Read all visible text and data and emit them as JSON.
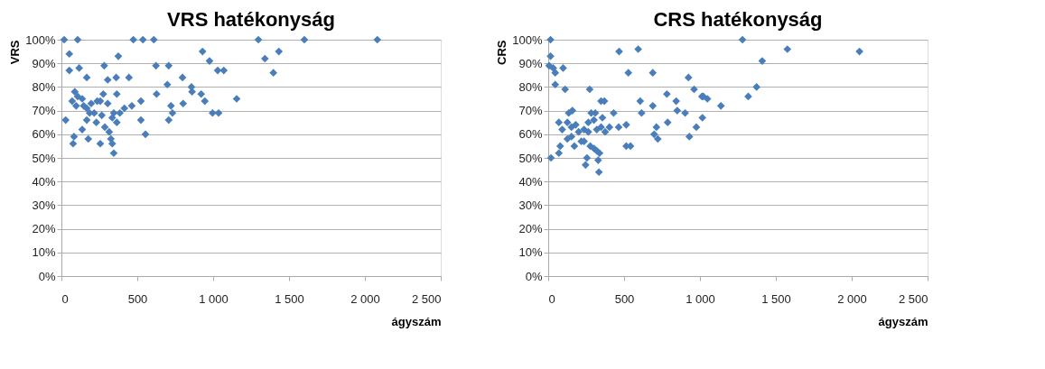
{
  "chart_data": [
    {
      "type": "scatter",
      "title": "VRS hatékonyság",
      "xlabel": "ágyszám",
      "ylabel": "VRS",
      "marker": "diamond",
      "grid": "y",
      "xlim": [
        0,
        2500
      ],
      "xticks": [
        0,
        500,
        {
          "value": 1000,
          "label": "1 000"
        },
        {
          "value": 1500,
          "label": "1 500"
        },
        {
          "value": 2000,
          "label": "2 000"
        },
        {
          "value": 2500,
          "label": "2 500"
        }
      ],
      "ylim": [
        0,
        100
      ],
      "yticks": [
        {
          "value": 0,
          "label": "0%"
        },
        {
          "value": 10,
          "label": "10%"
        },
        {
          "value": 20,
          "label": "20%"
        },
        {
          "value": 30,
          "label": "30%"
        },
        {
          "value": 40,
          "label": "40%"
        },
        {
          "value": 50,
          "label": "50%"
        },
        {
          "value": 60,
          "label": "60%"
        },
        {
          "value": 70,
          "label": "70%"
        },
        {
          "value": 80,
          "label": "80%"
        },
        {
          "value": 90,
          "label": "90%"
        },
        {
          "value": 100,
          "label": "100%"
        }
      ],
      "series": [
        {
          "color": "#4a7ebb",
          "x": [
            18,
            107,
            52,
            52,
            117,
            167,
            28,
            88,
            71,
            107,
            137,
            97,
            147,
            167,
            196,
            186,
            216,
            167,
            236,
            256,
            83,
            77,
            137,
            177,
            230,
            256,
            282,
            276,
            266,
            305,
            305,
            361,
            375,
            365,
            286,
            315,
            326,
            335,
            345,
            335,
            365,
            345,
            385,
            415,
            445,
            464,
            474,
            537,
            609,
            524,
            524,
            554,
            623,
            627,
            707,
            698,
            722,
            732,
            707,
            798,
            802,
            857,
            861,
            930,
            921,
            945,
            976,
            1030,
            996,
            1036,
            1298,
            1601,
            2082,
            1341,
            1433,
            1397,
            1070,
            1155
          ],
          "values": [
            100,
            100,
            94,
            87,
            88,
            84,
            66,
            78,
            74,
            76,
            75,
            72,
            72,
            71,
            73,
            69,
            69,
            66,
            74,
            74,
            59,
            56,
            62,
            58,
            65,
            56,
            89,
            77,
            68,
            73,
            83,
            84,
            93,
            77,
            63,
            61,
            58,
            56,
            52,
            67,
            65,
            69,
            69,
            71,
            84,
            72,
            100,
            100,
            100,
            74,
            66,
            60,
            89,
            77,
            89,
            81,
            72,
            69,
            66,
            84,
            73,
            80,
            78,
            95,
            77,
            74,
            91,
            87,
            69,
            69,
            100,
            100,
            100,
            92,
            95,
            86,
            87,
            75
          ]
        }
      ]
    },
    {
      "type": "scatter",
      "title": "CRS hatékonyság",
      "xlabel": "ágyszám",
      "ylabel": "CRS",
      "marker": "diamond",
      "grid": "y",
      "xlim": [
        0,
        2500
      ],
      "xticks": [
        0,
        500,
        {
          "value": 1000,
          "label": "1 000"
        },
        {
          "value": 1500,
          "label": "1 500"
        },
        {
          "value": 2000,
          "label": "2 000"
        },
        {
          "value": 2500,
          "label": "2 500"
        }
      ],
      "ylim": [
        0,
        100
      ],
      "yticks": [
        {
          "value": 0,
          "label": "0%"
        },
        {
          "value": 10,
          "label": "10%"
        },
        {
          "value": 20,
          "label": "20%"
        },
        {
          "value": 30,
          "label": "30%"
        },
        {
          "value": 40,
          "label": "40%"
        },
        {
          "value": 50,
          "label": "50%"
        },
        {
          "value": 60,
          "label": "60%"
        },
        {
          "value": 70,
          "label": "70%"
        },
        {
          "value": 80,
          "label": "80%"
        },
        {
          "value": 90,
          "label": "90%"
        },
        {
          "value": 100,
          "label": "100%"
        }
      ],
      "series": [
        {
          "color": "#4a7ebb",
          "x": [
            15,
            15,
            6,
            33,
            46,
            46,
            98,
            111,
            18,
            70,
            79,
            70,
            92,
            126,
            135,
            159,
            126,
            153,
            172,
            153,
            181,
            200,
            236,
            218,
            273,
            264,
            283,
            310,
            301,
            264,
            236,
            255,
            246,
            277,
            301,
            320,
            338,
            329,
            334,
            348,
            370,
            357,
            320,
            348,
            375,
            403,
            431,
            464,
            467,
            514,
            514,
            542,
            528,
            593,
            606,
            615,
            689,
            689,
            698,
            713,
            722,
            782,
            787,
            843,
            850,
            902,
            924,
            930,
            961,
            976,
            1013,
            1016,
            1280,
            1576,
            2051,
            1410,
            1373,
            1318,
            1138,
            1022,
            1049
          ],
          "values": [
            100,
            93,
            89,
            88,
            86,
            81,
            88,
            79,
            50,
            52,
            55,
            65,
            62,
            65,
            69,
            70,
            58,
            59,
            55,
            63,
            64,
            61,
            62,
            57,
            79,
            65,
            69,
            69,
            66,
            61,
            57,
            50,
            47,
            55,
            54,
            53,
            52,
            49,
            44,
            74,
            74,
            67,
            62,
            63,
            61,
            63,
            69,
            63,
            95,
            64,
            55,
            55,
            86,
            96,
            74,
            69,
            86,
            72,
            60,
            63,
            58,
            77,
            65,
            74,
            70,
            69,
            84,
            59,
            79,
            63,
            76,
            67,
            100,
            96,
            95,
            91,
            80,
            76,
            72,
            76,
            75
          ]
        }
      ]
    }
  ]
}
